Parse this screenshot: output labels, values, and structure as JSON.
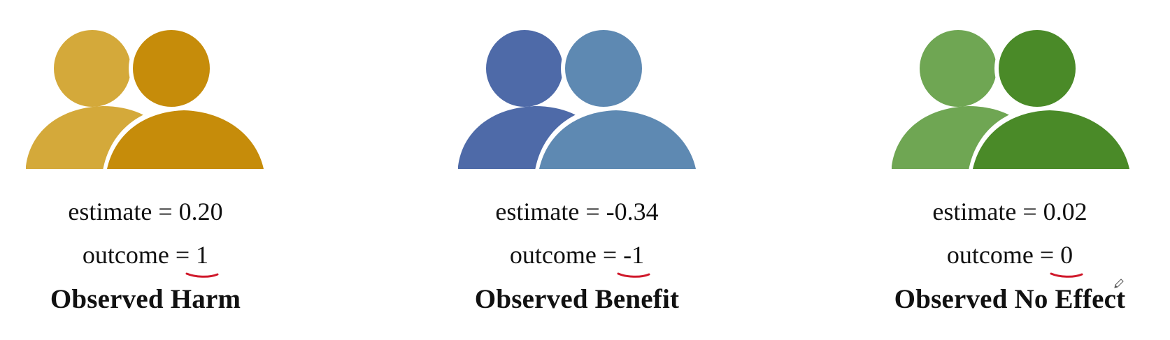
{
  "panels": [
    {
      "key": "harm",
      "estimate_text": "estimate = 0.20",
      "outcome_prefix": "outcome = ",
      "outcome_value": "1",
      "title": "Observed Harm",
      "colors": {
        "back_person": "#D4A93A",
        "front_person": "#C68C0A"
      }
    },
    {
      "key": "benefit",
      "estimate_text": "estimate = -0.34",
      "outcome_prefix": "outcome = ",
      "outcome_value": "-1",
      "title": "Observed Benefit",
      "colors": {
        "back_person": "#4E6AA8",
        "front_person": "#5E89B2"
      }
    },
    {
      "key": "noeffect",
      "estimate_text": "estimate = 0.02",
      "outcome_prefix": "outcome = ",
      "outcome_value": "0",
      "title": "Observed No Effect",
      "colors": {
        "back_person": "#6FA653",
        "front_person": "#4A8A28"
      }
    }
  ],
  "annotation_color": "#D0192B",
  "icons": [
    "two-people-icon",
    "pencil-cursor-icon"
  ]
}
